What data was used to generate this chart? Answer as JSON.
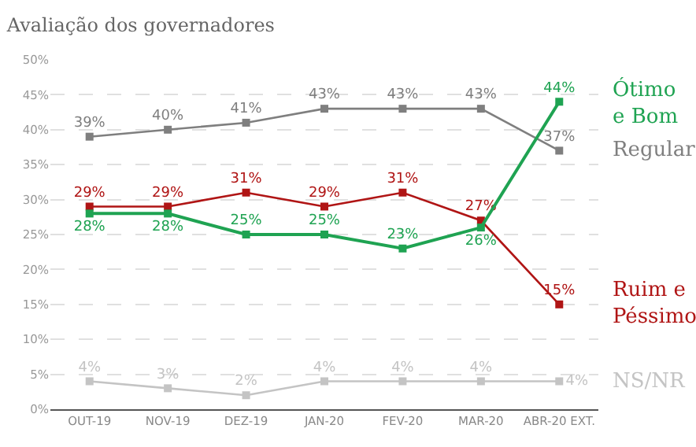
{
  "chart_data": {
    "type": "line",
    "title": "Avaliação dos governadores",
    "categories": [
      "OUT-19",
      "NOV-19",
      "DEZ-19",
      "JAN-20",
      "FEV-20",
      "MAR-20",
      "ABR-20 EXT."
    ],
    "series": [
      {
        "name": "Regular",
        "color": "#7f7f7f",
        "values": [
          39,
          40,
          41,
          43,
          43,
          43,
          37
        ],
        "value_labels": [
          "39%",
          "40%",
          "41%",
          "43%",
          "43%",
          "43%",
          "37%"
        ]
      },
      {
        "name": "Ruim e Péssimo",
        "color": "#b01515",
        "values": [
          29,
          29,
          31,
          29,
          31,
          27,
          15
        ],
        "value_labels": [
          "29%",
          "29%",
          "31%",
          "29%",
          "31%",
          "27%",
          "15%"
        ]
      },
      {
        "name": "Ótimo e Bom",
        "color": "#1fa352",
        "values": [
          28,
          28,
          25,
          25,
          23,
          26,
          44
        ],
        "value_labels": [
          "28%",
          "28%",
          "25%",
          "25%",
          "23%",
          "26%",
          "44%"
        ]
      },
      {
        "name": "NS/NR",
        "color": "#c4c4c4",
        "values": [
          4,
          3,
          2,
          4,
          4,
          4,
          4
        ],
        "value_labels": [
          "4%",
          "3%",
          "2%",
          "4%",
          "4%",
          "4%",
          "4%"
        ]
      }
    ],
    "ylim": [
      0,
      50
    ],
    "yticks": [
      {
        "value": 0,
        "label": "0%"
      },
      {
        "value": 5,
        "label": "5%"
      },
      {
        "value": 10,
        "label": "10%"
      },
      {
        "value": 15,
        "label": "15%"
      },
      {
        "value": 20,
        "label": "20%"
      },
      {
        "value": 25,
        "label": "25%"
      },
      {
        "value": 30,
        "label": "30%"
      },
      {
        "value": 35,
        "label": "35%"
      },
      {
        "value": 40,
        "label": "40%"
      },
      {
        "value": 45,
        "label": "45%"
      },
      {
        "value": 50,
        "label": "50%"
      }
    ],
    "grid": "y",
    "marker": "square",
    "line_style": "solid",
    "legend": false
  }
}
